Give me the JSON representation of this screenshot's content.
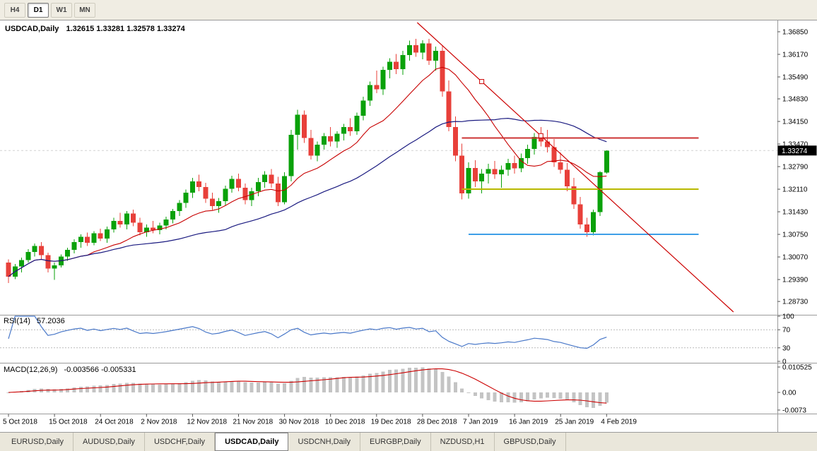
{
  "toolbar": {
    "timeframes": [
      {
        "label": "H4",
        "active": false
      },
      {
        "label": "D1",
        "active": true
      },
      {
        "label": "W1",
        "active": false
      },
      {
        "label": "MN",
        "active": false
      }
    ]
  },
  "chart": {
    "title": "USDCAD,Daily",
    "ohlc_line": "1.32615 1.33281 1.32578 1.33274",
    "current_price": "1.33274"
  },
  "chart_data": {
    "type": "candlestick",
    "symbol": "USDCAD",
    "period": "Daily",
    "last_ohlc": {
      "open": 1.32615,
      "high": 1.33281,
      "low": 1.32578,
      "close": 1.33274
    },
    "price_axis_labels": [
      "1.36850",
      "1.36170",
      "1.35490",
      "1.34830",
      "1.34150",
      "1.33470",
      "1.32790",
      "1.32110",
      "1.31430",
      "1.30750",
      "1.30070",
      "1.29390",
      "1.28730"
    ],
    "date_labels": [
      "5 Oct 2018",
      "15 Oct 2018",
      "24 Oct 2018",
      "2 Nov 2018",
      "12 Nov 2018",
      "21 Nov 2018",
      "30 Nov 2018",
      "10 Dec 2018",
      "19 Dec 2018",
      "28 Dec 2018",
      "7 Jan 2019",
      "16 Jan 2019",
      "25 Jan 2019",
      "4 Feb 2019"
    ],
    "date_label_indices": [
      0,
      7,
      14,
      21,
      28,
      35,
      42,
      49,
      56,
      63,
      70,
      77,
      84,
      91
    ],
    "colors": {
      "up": "#0aa10a",
      "down": "#e8403a"
    },
    "candles": [
      [
        1.299,
        1.3,
        1.2928,
        1.2948
      ],
      [
        1.2948,
        1.2986,
        1.294,
        1.2978
      ],
      [
        1.2978,
        1.3005,
        1.296,
        1.2998
      ],
      [
        1.2998,
        1.303,
        1.299,
        1.3022
      ],
      [
        1.3022,
        1.3048,
        1.3008,
        1.304
      ],
      [
        1.304,
        1.3052,
        1.3,
        1.3012
      ],
      [
        1.3012,
        1.302,
        1.296,
        1.2972
      ],
      [
        1.2972,
        1.299,
        1.2938,
        1.2982
      ],
      [
        1.2982,
        1.3015,
        1.2975,
        1.3008
      ],
      [
        1.3008,
        1.3035,
        1.2995,
        1.3028
      ],
      [
        1.3028,
        1.306,
        1.3018,
        1.3052
      ],
      [
        1.3052,
        1.3075,
        1.3035,
        1.3068
      ],
      [
        1.3068,
        1.308,
        1.304,
        1.305
      ],
      [
        1.305,
        1.3085,
        1.3042,
        1.3078
      ],
      [
        1.3078,
        1.3092,
        1.3055,
        1.3062
      ],
      [
        1.3062,
        1.3098,
        1.305,
        1.309
      ],
      [
        1.309,
        1.3125,
        1.308,
        1.3115
      ],
      [
        1.3115,
        1.314,
        1.3095,
        1.3105
      ],
      [
        1.3105,
        1.3145,
        1.309,
        1.3138
      ],
      [
        1.3138,
        1.315,
        1.31,
        1.311
      ],
      [
        1.311,
        1.3125,
        1.3072,
        1.3082
      ],
      [
        1.3082,
        1.3105,
        1.3068,
        1.3095
      ],
      [
        1.3095,
        1.3115,
        1.3078,
        1.3088
      ],
      [
        1.3088,
        1.311,
        1.3075,
        1.3102
      ],
      [
        1.3102,
        1.3128,
        1.309,
        1.312
      ],
      [
        1.312,
        1.3152,
        1.3108,
        1.3145
      ],
      [
        1.3145,
        1.3178,
        1.313,
        1.317
      ],
      [
        1.317,
        1.321,
        1.3155,
        1.32
      ],
      [
        1.32,
        1.3245,
        1.3185,
        1.3235
      ],
      [
        1.3235,
        1.3255,
        1.3205,
        1.3218
      ],
      [
        1.3218,
        1.323,
        1.317,
        1.3182
      ],
      [
        1.3182,
        1.32,
        1.3148,
        1.316
      ],
      [
        1.316,
        1.3185,
        1.314,
        1.3175
      ],
      [
        1.3175,
        1.3222,
        1.3162,
        1.3212
      ],
      [
        1.3212,
        1.3252,
        1.32,
        1.3242
      ],
      [
        1.3242,
        1.3258,
        1.3205,
        1.3215
      ],
      [
        1.3215,
        1.3228,
        1.3165,
        1.3178
      ],
      [
        1.3178,
        1.3215,
        1.316,
        1.3205
      ],
      [
        1.3205,
        1.3245,
        1.319,
        1.3232
      ],
      [
        1.3232,
        1.3265,
        1.3215,
        1.3255
      ],
      [
        1.3255,
        1.3272,
        1.3215,
        1.3228
      ],
      [
        1.3228,
        1.3248,
        1.316,
        1.3172
      ],
      [
        1.3172,
        1.3262,
        1.3165,
        1.325
      ],
      [
        1.325,
        1.339,
        1.3235,
        1.3375
      ],
      [
        1.3375,
        1.345,
        1.333,
        1.3435
      ],
      [
        1.3435,
        1.3448,
        1.335,
        1.3365
      ],
      [
        1.3365,
        1.339,
        1.33,
        1.3312
      ],
      [
        1.3312,
        1.3355,
        1.3295,
        1.3345
      ],
      [
        1.3345,
        1.338,
        1.333,
        1.337
      ],
      [
        1.337,
        1.3398,
        1.334,
        1.3355
      ],
      [
        1.3355,
        1.3385,
        1.3335,
        1.3378
      ],
      [
        1.3378,
        1.3408,
        1.3358,
        1.3398
      ],
      [
        1.3398,
        1.3425,
        1.3372,
        1.3385
      ],
      [
        1.3385,
        1.3442,
        1.3375,
        1.3432
      ],
      [
        1.3432,
        1.349,
        1.3418,
        1.3478
      ],
      [
        1.3478,
        1.3535,
        1.3462,
        1.3525
      ],
      [
        1.3525,
        1.3568,
        1.35,
        1.3512
      ],
      [
        1.3512,
        1.358,
        1.3495,
        1.357
      ],
      [
        1.357,
        1.3605,
        1.3545,
        1.3595
      ],
      [
        1.3595,
        1.3618,
        1.3558,
        1.3572
      ],
      [
        1.3572,
        1.3628,
        1.3555,
        1.3615
      ],
      [
        1.3615,
        1.3658,
        1.3598,
        1.3645
      ],
      [
        1.3645,
        1.3664,
        1.361,
        1.3622
      ],
      [
        1.3622,
        1.366,
        1.3602,
        1.365
      ],
      [
        1.365,
        1.3664,
        1.3585,
        1.3598
      ],
      [
        1.3598,
        1.364,
        1.3568,
        1.3628
      ],
      [
        1.3628,
        1.3645,
        1.349,
        1.3505
      ],
      [
        1.3505,
        1.3538,
        1.3385,
        1.3398
      ],
      [
        1.3398,
        1.343,
        1.3295,
        1.3312
      ],
      [
        1.3312,
        1.3348,
        1.318,
        1.3198
      ],
      [
        1.3198,
        1.3292,
        1.3182,
        1.3275
      ],
      [
        1.3275,
        1.3298,
        1.3218,
        1.3235
      ],
      [
        1.3235,
        1.3272,
        1.3198,
        1.3258
      ],
      [
        1.3258,
        1.3288,
        1.3228,
        1.3272
      ],
      [
        1.3272,
        1.3296,
        1.3242,
        1.3256
      ],
      [
        1.3256,
        1.3282,
        1.3215,
        1.327
      ],
      [
        1.327,
        1.3302,
        1.3252,
        1.329
      ],
      [
        1.329,
        1.3312,
        1.3258,
        1.3274
      ],
      [
        1.3274,
        1.3318,
        1.3262,
        1.3305
      ],
      [
        1.3305,
        1.3345,
        1.3288,
        1.3332
      ],
      [
        1.3332,
        1.338,
        1.3315,
        1.3368
      ],
      [
        1.3368,
        1.3398,
        1.334,
        1.3355
      ],
      [
        1.3355,
        1.339,
        1.3322,
        1.3338
      ],
      [
        1.3338,
        1.3362,
        1.3278,
        1.3292
      ],
      [
        1.3292,
        1.3322,
        1.3258,
        1.327
      ],
      [
        1.327,
        1.329,
        1.3205,
        1.322
      ],
      [
        1.322,
        1.3245,
        1.3152,
        1.3165
      ],
      [
        1.3165,
        1.3188,
        1.3092,
        1.3105
      ],
      [
        1.3105,
        1.3125,
        1.3068,
        1.3082
      ],
      [
        1.3082,
        1.315,
        1.3072,
        1.3142
      ],
      [
        1.3142,
        1.3265,
        1.313,
        1.3262
      ],
      [
        1.32615,
        1.33281,
        1.32578,
        1.33274
      ]
    ],
    "overlays": {
      "ma_fast": {
        "period": 13,
        "color": "#c80000"
      },
      "ma_slow": {
        "period": 34,
        "color": "#1a1a80"
      },
      "trendline": {
        "color": "#cc0000",
        "anchors": [
          {
            "bar": 72,
            "price": 1.3535
          },
          {
            "bar": 81,
            "price": 1.3372
          }
        ]
      },
      "hlines": [
        {
          "name": "resistance-red",
          "price": 1.3365,
          "color": "#cc3333",
          "from_bar": 69,
          "to_bar": 105
        },
        {
          "name": "support-olive",
          "price": 1.3211,
          "color": "#b8b800",
          "from_bar": 69,
          "to_bar": 105
        },
        {
          "name": "support-blue",
          "price": 1.3075,
          "color": "#3e9fe8",
          "from_bar": 70,
          "to_bar": 105
        }
      ]
    },
    "indicators": {
      "rsi": {
        "label": "RSI(14)",
        "value": "57.2036",
        "period": 14,
        "color": "#4877c8",
        "axis_labels": [
          "100",
          "70",
          "30",
          "0"
        ],
        "levels": [
          70,
          30
        ]
      },
      "macd": {
        "label": "MACD(12,26,9)",
        "value": "-0.003566 -0.005331",
        "fast": 12,
        "slow": 26,
        "signal": 9,
        "hist_color": "#c4c4c4",
        "signal_color": "#cc0000",
        "axis_labels": [
          "0.010525",
          "0.00",
          "-0.0073"
        ],
        "axis_values": [
          0.010525,
          0,
          -0.0073
        ]
      }
    }
  },
  "tabs": [
    {
      "label": "EURUSD,Daily",
      "active": false
    },
    {
      "label": "AUDUSD,Daily",
      "active": false
    },
    {
      "label": "USDCHF,Daily",
      "active": false
    },
    {
      "label": "USDCAD,Daily",
      "active": true
    },
    {
      "label": "USDCNH,Daily",
      "active": false
    },
    {
      "label": "EURGBP,Daily",
      "active": false
    },
    {
      "label": "NZDUSD,H1",
      "active": false
    },
    {
      "label": "GBPUSD,Daily",
      "active": false
    }
  ]
}
